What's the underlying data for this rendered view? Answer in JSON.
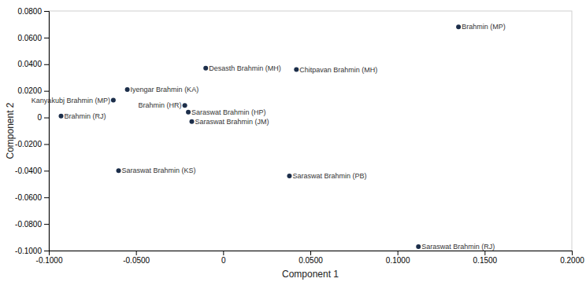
{
  "chart_data": {
    "type": "scatter",
    "xlabel": "Component 1",
    "ylabel": "Component 2",
    "x": [
      0.135,
      -0.01,
      0.042,
      -0.055,
      -0.063,
      -0.022,
      -0.02,
      -0.093,
      -0.018,
      -0.06,
      0.038,
      0.112
    ],
    "values": [
      0.068,
      0.037,
      0.036,
      0.021,
      0.013,
      0.009,
      0.004,
      0.001,
      -0.003,
      -0.04,
      -0.044,
      -0.097
    ],
    "annotations": [
      "Brahmin (MP)",
      "Desasth Brahmin (MH)",
      "Chitpavan Brahmin (MH)",
      "Iyengar Brahmin (KA)",
      "Kanyakubj Brahmin (MP)",
      "Brahmin (HR)",
      "Saraswat Brahmin (HP)",
      "Brahmin (RJ)",
      "Saraswat Brahmin (JM)",
      "Saraswat Brahmin (KS)",
      "Saraswat Brahmin (PB)",
      "Saraswat Brahmin (RJ)"
    ],
    "color": "#1c2e4a",
    "xlim": [
      -0.1,
      0.2
    ],
    "ylim": [
      -0.1,
      0.08
    ],
    "xticks": [
      {
        "value": -0.1,
        "label": "-0.1000"
      },
      {
        "value": -0.05,
        "label": "-0.0500"
      },
      0,
      {
        "value": 0.05,
        "label": "0.0500"
      },
      {
        "value": 0.1,
        "label": "0.1000"
      },
      {
        "value": 0.15,
        "label": "0.1500"
      },
      {
        "value": 0.2,
        "label": "0.2000"
      }
    ],
    "yticks": [
      {
        "value": -0.1,
        "label": "-0.1000"
      },
      {
        "value": -0.08,
        "label": "-0.0800"
      },
      {
        "value": -0.06,
        "label": "-0.0600"
      },
      {
        "value": -0.04,
        "label": "-0.0400"
      },
      {
        "value": -0.02,
        "label": "-0.0200"
      },
      0,
      {
        "value": 0.02,
        "label": "0.0200"
      },
      {
        "value": 0.04,
        "label": "0.0400"
      },
      {
        "value": 0.06,
        "label": "0.0600"
      },
      {
        "value": 0.08,
        "label": "0.0800"
      }
    ],
    "grid": false
  }
}
